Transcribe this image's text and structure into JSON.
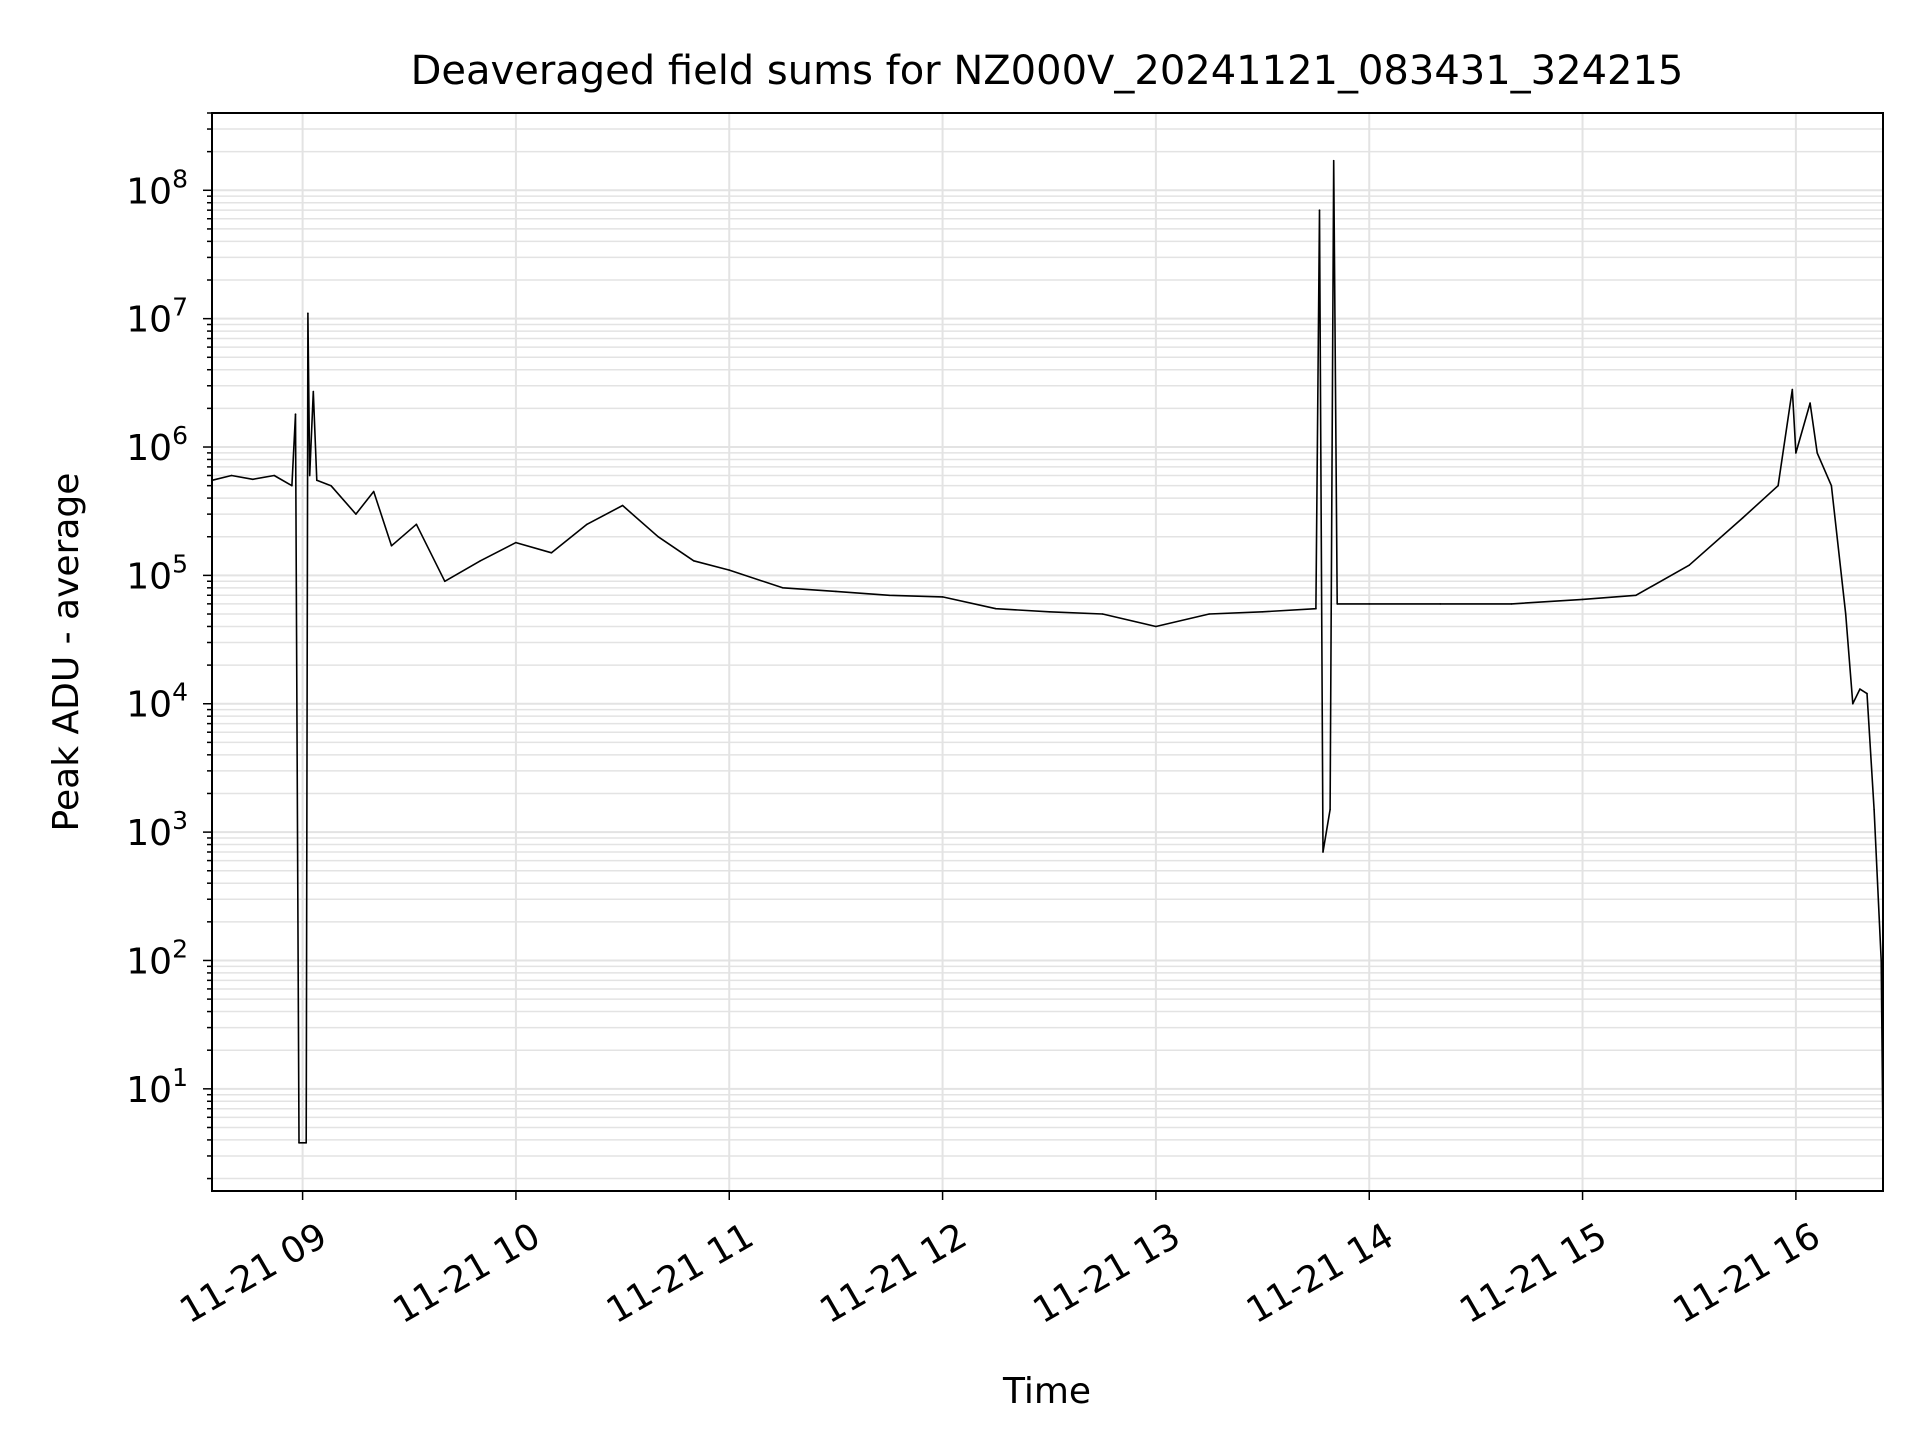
{
  "chart_data": {
    "type": "line",
    "title": "Deaveraged field sums for NZ000V_20241121_083431_324215",
    "xlabel": "Time",
    "ylabel": "Peak ADU - average",
    "x_range": [
      "2024-11-21 08:34:31",
      "2024-11-21 16:24:30"
    ],
    "ylim": [
      1.6,
      400000000
    ],
    "yscale": "log",
    "grid": true,
    "line_color": "#000000",
    "x_ticks": [
      {
        "time": "2024-11-21 09:00",
        "label": "11-21 09"
      },
      {
        "time": "2024-11-21 10:00",
        "label": "11-21 10"
      },
      {
        "time": "2024-11-21 11:00",
        "label": "11-21 11"
      },
      {
        "time": "2024-11-21 12:00",
        "label": "11-21 12"
      },
      {
        "time": "2024-11-21 13:00",
        "label": "11-21 13"
      },
      {
        "time": "2024-11-21 14:00",
        "label": "11-21 14"
      },
      {
        "time": "2024-11-21 15:00",
        "label": "11-21 15"
      },
      {
        "time": "2024-11-21 16:00",
        "label": "11-21 16"
      }
    ],
    "y_ticks": [
      {
        "value": 10,
        "base": "10",
        "exp": "1"
      },
      {
        "value": 100,
        "base": "10",
        "exp": "2"
      },
      {
        "value": 1000,
        "base": "10",
        "exp": "3"
      },
      {
        "value": 10000,
        "base": "10",
        "exp": "4"
      },
      {
        "value": 100000,
        "base": "10",
        "exp": "5"
      },
      {
        "value": 1000000,
        "base": "10",
        "exp": "6"
      },
      {
        "value": 10000000,
        "base": "10",
        "exp": "7"
      },
      {
        "value": 100000000,
        "base": "10",
        "exp": "8"
      }
    ],
    "series": [
      {
        "points": [
          [
            "2024-11-21 08:34:31",
            550000
          ],
          [
            "2024-11-21 08:40",
            600000
          ],
          [
            "2024-11-21 08:46",
            560000
          ],
          [
            "2024-11-21 08:52",
            600000
          ],
          [
            "2024-11-21 08:57",
            500000
          ],
          [
            "2024-11-21 08:58",
            1800000
          ],
          [
            "2024-11-21 08:59",
            3.8
          ],
          [
            "2024-11-21 09:01",
            3.8
          ],
          [
            "2024-11-21 09:01:30",
            11000000
          ],
          [
            "2024-11-21 09:02",
            600000
          ],
          [
            "2024-11-21 09:03",
            2700000
          ],
          [
            "2024-11-21 09:04",
            550000
          ],
          [
            "2024-11-21 09:08",
            500000
          ],
          [
            "2024-11-21 09:15",
            300000
          ],
          [
            "2024-11-21 09:20",
            450000
          ],
          [
            "2024-11-21 09:25",
            170000
          ],
          [
            "2024-11-21 09:32",
            250000
          ],
          [
            "2024-11-21 09:40",
            90000
          ],
          [
            "2024-11-21 09:50",
            130000
          ],
          [
            "2024-11-21 10:00",
            180000
          ],
          [
            "2024-11-21 10:10",
            150000
          ],
          [
            "2024-11-21 10:20",
            250000
          ],
          [
            "2024-11-21 10:30",
            350000
          ],
          [
            "2024-11-21 10:40",
            200000
          ],
          [
            "2024-11-21 10:50",
            130000
          ],
          [
            "2024-11-21 11:00",
            110000
          ],
          [
            "2024-11-21 11:15",
            80000
          ],
          [
            "2024-11-21 11:30",
            75000
          ],
          [
            "2024-11-21 11:45",
            70000
          ],
          [
            "2024-11-21 12:00",
            68000
          ],
          [
            "2024-11-21 12:15",
            55000
          ],
          [
            "2024-11-21 12:30",
            52000
          ],
          [
            "2024-11-21 12:45",
            50000
          ],
          [
            "2024-11-21 13:00",
            40000
          ],
          [
            "2024-11-21 13:15",
            50000
          ],
          [
            "2024-11-21 13:30",
            52000
          ],
          [
            "2024-11-21 13:45",
            55000
          ],
          [
            "2024-11-21 13:46",
            70000000
          ],
          [
            "2024-11-21 13:47",
            700
          ],
          [
            "2024-11-21 13:49",
            1500
          ],
          [
            "2024-11-21 13:50",
            170000000
          ],
          [
            "2024-11-21 13:51",
            60000
          ],
          [
            "2024-11-21 14:00",
            60000
          ],
          [
            "2024-11-21 14:20",
            60000
          ],
          [
            "2024-11-21 14:40",
            60000
          ],
          [
            "2024-11-21 15:00",
            65000
          ],
          [
            "2024-11-21 15:15",
            70000
          ],
          [
            "2024-11-21 15:30",
            120000
          ],
          [
            "2024-11-21 15:45",
            280000
          ],
          [
            "2024-11-21 15:55",
            500000
          ],
          [
            "2024-11-21 15:59",
            2800000
          ],
          [
            "2024-11-21 16:00",
            900000
          ],
          [
            "2024-11-21 16:04",
            2200000
          ],
          [
            "2024-11-21 16:06",
            900000
          ],
          [
            "2024-11-21 16:10",
            500000
          ],
          [
            "2024-11-21 16:14",
            50000
          ],
          [
            "2024-11-21 16:16",
            10000
          ],
          [
            "2024-11-21 16:18",
            13000
          ],
          [
            "2024-11-21 16:20",
            12000
          ],
          [
            "2024-11-21 16:22",
            1500
          ],
          [
            "2024-11-21 16:24",
            100
          ],
          [
            "2024-11-21 16:24:30",
            3.8
          ]
        ]
      }
    ]
  }
}
